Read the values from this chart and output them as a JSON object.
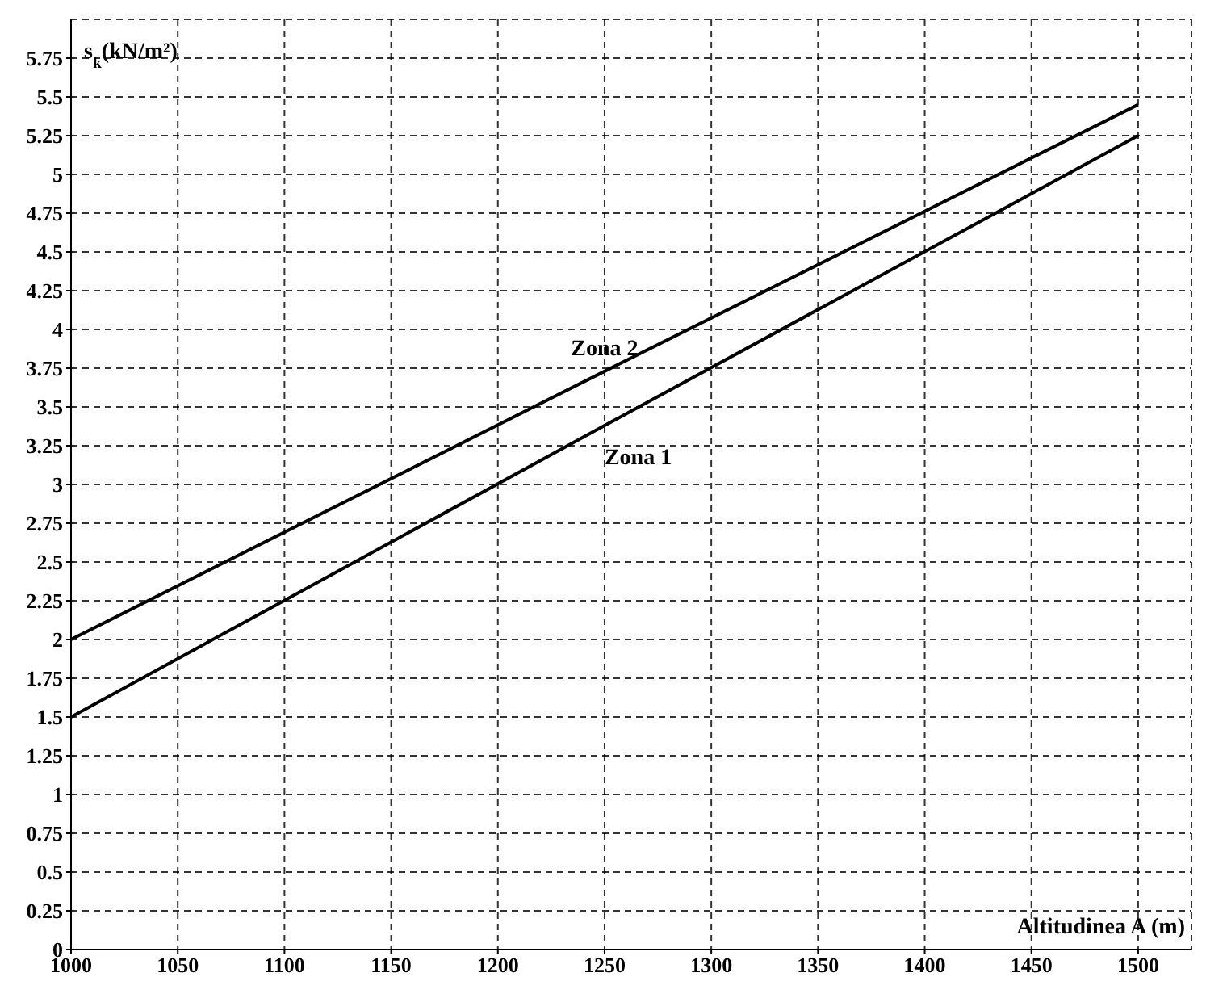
{
  "chart_data": {
    "type": "line",
    "xlabel": "Altitudinea A (m)",
    "ylabel": "s$_{k}$(kN/m²)",
    "x": [
      1000,
      1250,
      1500
    ],
    "series": [
      {
        "name": "Zona 1",
        "color": "#000000",
        "values": [
          1.5,
          3.38,
          5.25
        ]
      },
      {
        "name": "Zona 2",
        "color": "#000000",
        "values": [
          2.0,
          3.73,
          5.45
        ]
      }
    ],
    "xlim": [
      1000,
      1525
    ],
    "xticks": [
      1000,
      1050,
      1100,
      1150,
      1200,
      1250,
      1300,
      1350,
      1400,
      1450,
      1500
    ],
    "ylim": [
      0,
      6
    ],
    "yticks": [
      0,
      0.25,
      0.5,
      0.75,
      1,
      1.25,
      1.5,
      1.75,
      2,
      2.25,
      2.5,
      2.75,
      3,
      3.25,
      3.5,
      3.75,
      4,
      4.25,
      4.5,
      4.75,
      5,
      5.25,
      5.5,
      5.75
    ],
    "grid": true,
    "marker": "none",
    "line_style": "solid"
  }
}
